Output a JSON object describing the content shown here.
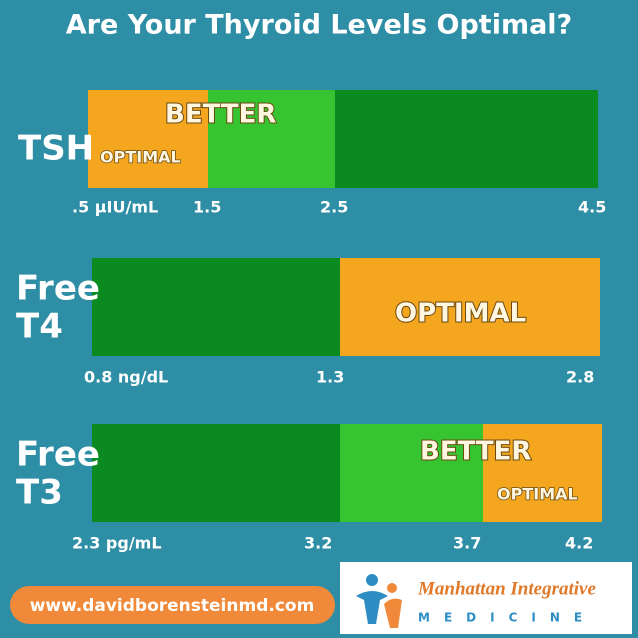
{
  "title": "Are Your Thyroid Levels Optimal?",
  "panels": [
    {
      "label": [
        "TSH"
      ],
      "zones": [
        "BETTER",
        "OPTIMAL"
      ],
      "ticks": [
        ".5 µIU/mL",
        "1.5",
        "2.5",
        "4.5"
      ]
    },
    {
      "label": [
        "Free",
        "T4"
      ],
      "zones": [
        "OPTIMAL"
      ],
      "ticks": [
        "0.8 ng/dL",
        "1.3",
        "2.8"
      ]
    },
    {
      "label": [
        "Free",
        "T3"
      ],
      "zones": [
        "BETTER",
        "OPTIMAL"
      ],
      "ticks": [
        "2.3 pg/mL",
        "3.2",
        "3.7",
        "4.2"
      ]
    }
  ],
  "footer": {
    "url": "www.davidborensteinmd.com",
    "logo": [
      "Manhattan Integrative",
      "MEDICINE"
    ]
  }
}
